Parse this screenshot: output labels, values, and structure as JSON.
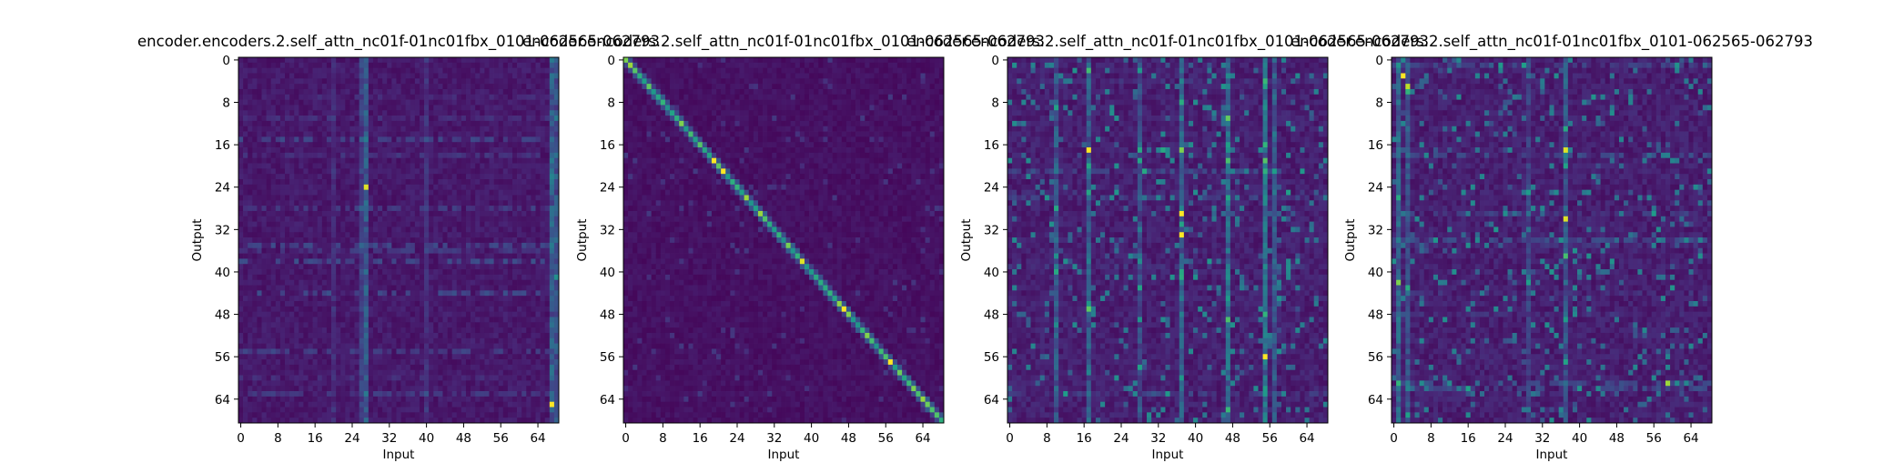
{
  "colors": {
    "background": "#ffffff",
    "colormap": "viridis",
    "low": "#440154",
    "high": "#fde725"
  },
  "chart_data": [
    {
      "type": "heatmap",
      "title": "encoder.encoders.2.self_attn_nc01f-01nc01fbx_0101-062565-062793",
      "xlabel": "Input",
      "ylabel": "Output",
      "xticks": [
        0,
        8,
        16,
        24,
        32,
        40,
        48,
        56,
        64
      ],
      "yticks": [
        0,
        8,
        16,
        24,
        32,
        40,
        48,
        56,
        64
      ],
      "xlim": [
        0,
        69
      ],
      "ylim": [
        0,
        69
      ],
      "n_rows": 69,
      "n_cols": 69,
      "pattern": "sparse_columns",
      "base": 0.08,
      "columns": [
        {
          "c": 27,
          "w": 0.22
        },
        {
          "c": 26,
          "w": 0.12
        },
        {
          "c": 40,
          "w": 0.08
        },
        {
          "c": 67,
          "w": 0.25
        },
        {
          "c": 68,
          "w": 0.2
        },
        {
          "c": 20,
          "w": 0.06
        }
      ],
      "hot": [
        {
          "r": 24,
          "c": 27,
          "v": 0.95
        },
        {
          "r": 65,
          "c": 67,
          "v": 1.0
        },
        {
          "r": 22,
          "c": 67,
          "v": 0.45
        },
        {
          "r": 41,
          "c": 68,
          "v": 0.5
        }
      ]
    },
    {
      "type": "heatmap",
      "title": "encoder.encoders.2.self_attn_nc01f-01nc01fbx_0101-062565-062793",
      "xlabel": "Input",
      "ylabel": "Output",
      "xticks": [
        0,
        8,
        16,
        24,
        32,
        40,
        48,
        56,
        64
      ],
      "yticks": [
        0,
        8,
        16,
        24,
        32,
        40,
        48,
        56,
        64
      ],
      "xlim": [
        0,
        69
      ],
      "ylim": [
        0,
        69
      ],
      "n_rows": 69,
      "n_cols": 69,
      "pattern": "diagonal",
      "base": 0.06,
      "columns": [],
      "hot": [
        {
          "r": 19,
          "c": 19,
          "v": 1.0
        },
        {
          "r": 21,
          "c": 21,
          "v": 1.0
        },
        {
          "r": 47,
          "c": 47,
          "v": 1.0
        },
        {
          "r": 57,
          "c": 57,
          "v": 1.0
        },
        {
          "r": 38,
          "c": 38,
          "v": 0.95
        }
      ]
    },
    {
      "type": "heatmap",
      "title": "encoder.encoders.2.self_attn_nc01f-01nc01fbx_0101-062565-062793",
      "xlabel": "Input",
      "ylabel": "Output",
      "xticks": [
        0,
        8,
        16,
        24,
        32,
        40,
        48,
        56,
        64
      ],
      "yticks": [
        0,
        8,
        16,
        24,
        32,
        40,
        48,
        56,
        64
      ],
      "xlim": [
        0,
        69
      ],
      "ylim": [
        0,
        69
      ],
      "n_rows": 69,
      "n_cols": 69,
      "pattern": "scattered",
      "base": 0.1,
      "columns": [
        {
          "c": 10,
          "w": 0.2
        },
        {
          "c": 17,
          "w": 0.22
        },
        {
          "c": 28,
          "w": 0.15
        },
        {
          "c": 37,
          "w": 0.25
        },
        {
          "c": 47,
          "w": 0.3
        },
        {
          "c": 55,
          "w": 0.3
        },
        {
          "c": 57,
          "w": 0.2
        }
      ],
      "hot": [
        {
          "r": 17,
          "c": 17,
          "v": 1.0
        },
        {
          "r": 29,
          "c": 37,
          "v": 1.0
        },
        {
          "r": 33,
          "c": 37,
          "v": 1.0
        },
        {
          "r": 56,
          "c": 55,
          "v": 1.0
        },
        {
          "r": 17,
          "c": 28,
          "v": 0.6
        },
        {
          "r": 17,
          "c": 33,
          "v": 0.6
        },
        {
          "r": 17,
          "c": 37,
          "v": 0.8
        }
      ]
    },
    {
      "type": "heatmap",
      "title": "encoder.encoders.2.self_attn_nc01f-01nc01fbx_0101-062565-062793",
      "xlabel": "Input",
      "ylabel": "Output",
      "xticks": [
        0,
        8,
        16,
        24,
        32,
        40,
        48,
        56,
        64
      ],
      "yticks": [
        0,
        8,
        16,
        24,
        32,
        40,
        48,
        56,
        64
      ],
      "xlim": [
        0,
        69
      ],
      "ylim": [
        0,
        69
      ],
      "n_rows": 69,
      "n_cols": 69,
      "pattern": "scattered",
      "base": 0.1,
      "columns": [
        {
          "c": 1,
          "w": 0.25
        },
        {
          "c": 3,
          "w": 0.2
        },
        {
          "c": 37,
          "w": 0.2
        },
        {
          "c": 29,
          "w": 0.12
        }
      ],
      "hot": [
        {
          "r": 3,
          "c": 2,
          "v": 1.0
        },
        {
          "r": 5,
          "c": 3,
          "v": 0.9
        },
        {
          "r": 17,
          "c": 37,
          "v": 0.95
        },
        {
          "r": 30,
          "c": 37,
          "v": 0.95
        },
        {
          "r": 61,
          "c": 59,
          "v": 0.85
        },
        {
          "r": 42,
          "c": 1,
          "v": 0.8
        },
        {
          "r": 37,
          "c": 37,
          "v": 0.7
        }
      ]
    }
  ]
}
